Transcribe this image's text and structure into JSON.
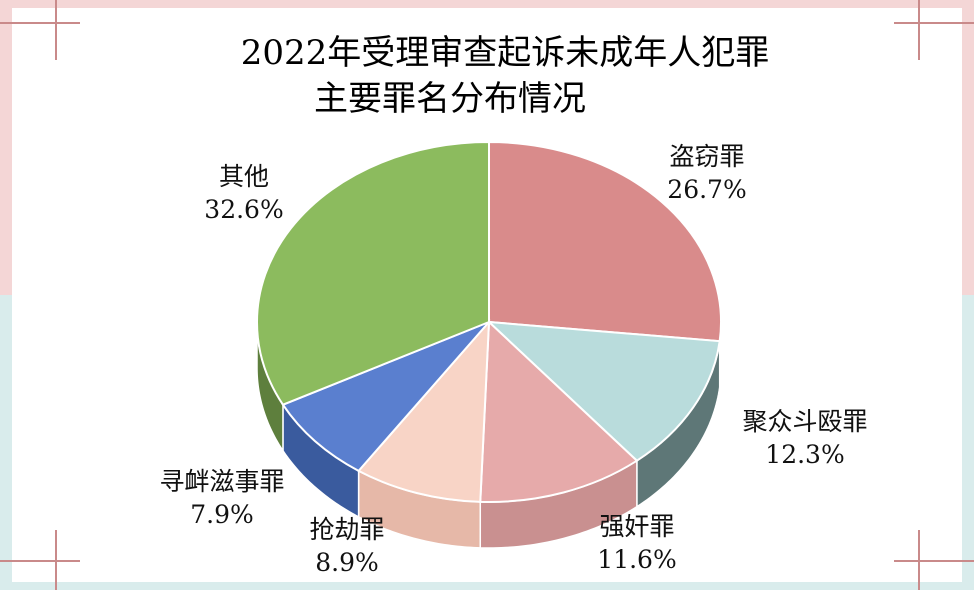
{
  "chart_data": {
    "type": "pie",
    "title": "2022年受理审查起诉未成年人犯罪",
    "subtitle": "主要罪名分布情况",
    "slices": [
      {
        "name": "盗窃罪",
        "value": 26.7,
        "label": "26.7%",
        "color": "#d98b8b",
        "side_color": "#b06a6a"
      },
      {
        "name": "聚众斗殴罪",
        "value": 12.3,
        "label": "12.3%",
        "color": "#b9dcdc",
        "side_color": "#5e7777"
      },
      {
        "name": "强奸罪",
        "value": 11.6,
        "label": "11.6%",
        "color": "#e6aaaa",
        "side_color": "#c99090"
      },
      {
        "name": "抢劫罪",
        "value": 8.9,
        "label": "8.9%",
        "color": "#f8d4c6",
        "side_color": "#e6b8a8"
      },
      {
        "name": "寻衅滋事罪",
        "value": 7.9,
        "label": "7.9%",
        "color": "#5a7fcf",
        "side_color": "#3a5b9e"
      },
      {
        "name": "其他",
        "value": 32.6,
        "label": "32.6%",
        "color": "#8cbb5e",
        "side_color": "#5e7f3d"
      }
    ]
  }
}
